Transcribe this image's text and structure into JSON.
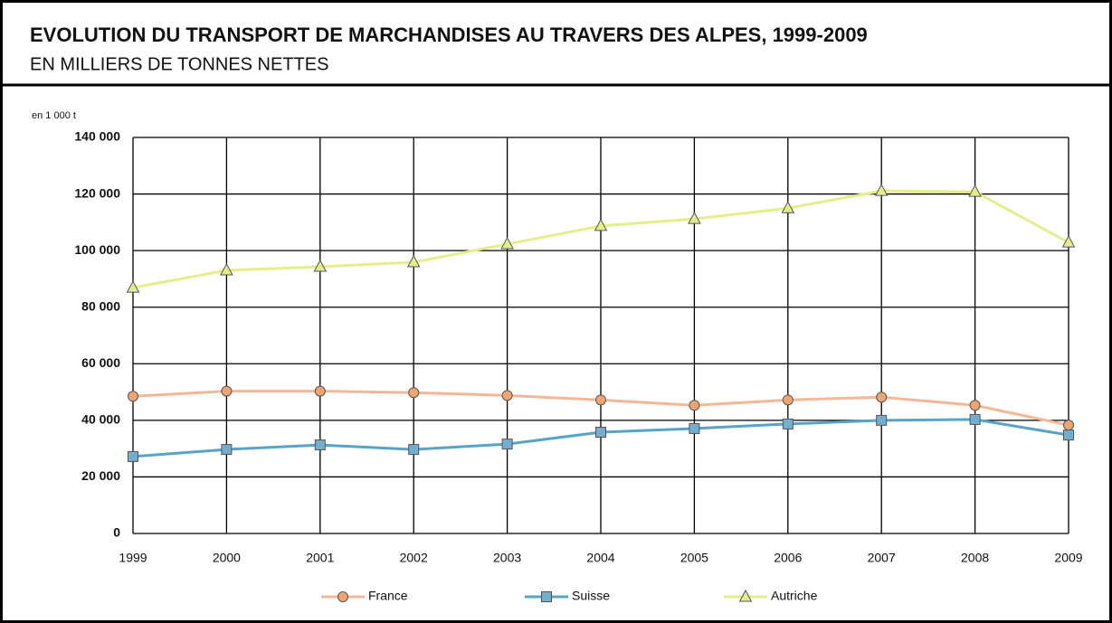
{
  "chart_data": {
    "type": "line",
    "title": "EVOLUTION DU TRANSPORT DE MARCHANDISES AU TRAVERS DES ALPES, 1999-2009",
    "subtitle": "EN MILLIERS DE TONNES NETTES",
    "y_label": "en 1 000 t",
    "categories": [
      "1999",
      "2000",
      "2001",
      "2002",
      "2003",
      "2004",
      "2005",
      "2006",
      "2007",
      "2008",
      "2009"
    ],
    "series": [
      {
        "name": "France",
        "color": "#f0a470",
        "line_color": "#f4b896",
        "marker": "circle",
        "values": [
          48500,
          50300,
          50300,
          49800,
          48800,
          47200,
          45300,
          47200,
          48200,
          45300,
          38300
        ]
      },
      {
        "name": "Suisse",
        "color": "#74aecf",
        "line_color": "#56a4c8",
        "marker": "square",
        "values": [
          27200,
          29700,
          31300,
          29700,
          31600,
          35800,
          37100,
          38700,
          40000,
          40300,
          34800
        ]
      },
      {
        "name": "Autriche",
        "color": "#e2ec8c",
        "line_color": "#e4ef8a",
        "marker": "triangle",
        "values": [
          86900,
          93000,
          94300,
          95900,
          102300,
          108700,
          111200,
          115000,
          121100,
          120800,
          102900
        ]
      }
    ],
    "ylim": [
      0,
      140000
    ],
    "yticks": [
      0,
      {
        "value": 20000,
        "label": "20 000"
      },
      {
        "value": 40000,
        "label": "40 000"
      },
      {
        "value": 60000,
        "label": "60 000"
      },
      {
        "value": 80000,
        "label": "80 000"
      },
      {
        "value": 100000,
        "label": "100 000"
      },
      {
        "value": 120000,
        "label": "120 000"
      },
      {
        "value": 140000,
        "label": "140 000"
      }
    ],
    "grid": true,
    "legend": "bottom"
  }
}
